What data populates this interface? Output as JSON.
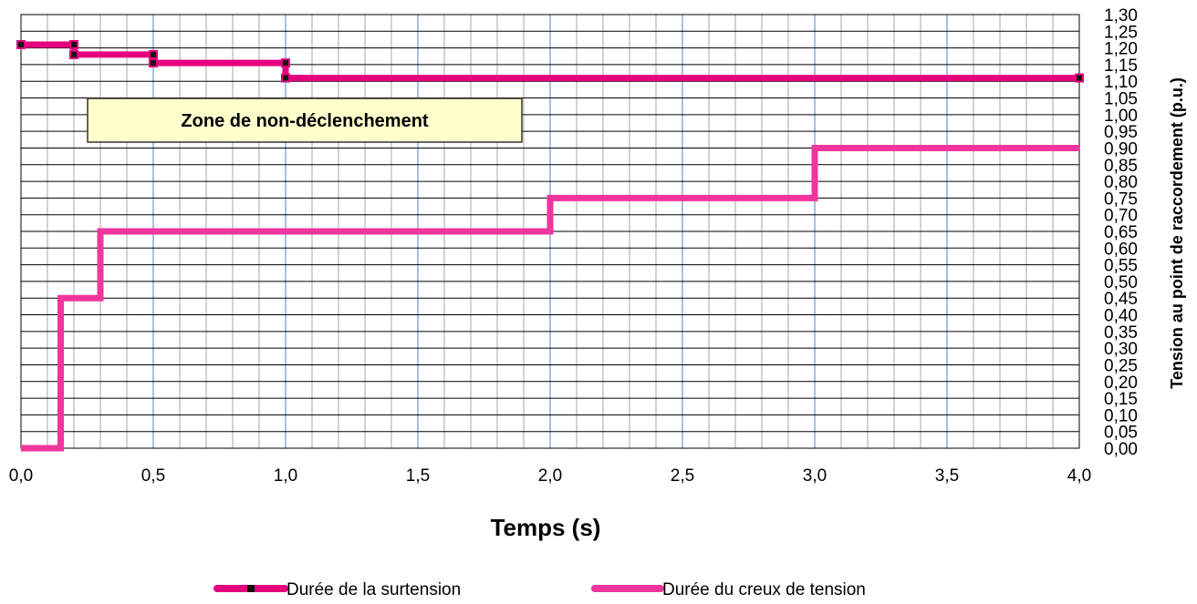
{
  "chart_data": {
    "type": "line",
    "title": "",
    "xlabel": "Temps (s)",
    "ylabel": "Tension au point de raccordement  (p.u.)",
    "xlim": [
      0,
      4
    ],
    "ylim": [
      0,
      1.3
    ],
    "x_ticks": [
      "0,0",
      "0,5",
      "1,0",
      "1,5",
      "2,0",
      "2,5",
      "3,0",
      "3,5",
      "4,0"
    ],
    "y_ticks": [
      "0,00",
      "0,05",
      "0,10",
      "0,15",
      "0,20",
      "0,25",
      "0,30",
      "0,35",
      "0,40",
      "0,45",
      "0,50",
      "0,55",
      "0,60",
      "0,65",
      "0,70",
      "0,75",
      "0,80",
      "0,85",
      "0,90",
      "0,95",
      "1,00",
      "1,05",
      "1,10",
      "1,15",
      "1,20",
      "1,25",
      "1,30"
    ],
    "grid": true,
    "y_axis_side": "right",
    "legend_position": "bottom",
    "annotation": "Zone de non-déclenchement",
    "series": [
      {
        "name": "Durée de la surtension",
        "color": "#E6007E",
        "markers": true,
        "x": [
          0,
          0.2,
          0.2,
          0.5,
          0.5,
          1.0,
          1.0,
          4.0
        ],
        "y": [
          1.21,
          1.21,
          1.18,
          1.18,
          1.155,
          1.155,
          1.11,
          1.11
        ]
      },
      {
        "name": "Durée du creux de tension",
        "color": "#F0359E",
        "markers": false,
        "x": [
          0,
          0.15,
          0.15,
          0.3,
          0.3,
          2.0,
          2.0,
          3.0,
          3.0,
          4.0
        ],
        "y": [
          0,
          0,
          0.45,
          0.45,
          0.65,
          0.65,
          0.75,
          0.75,
          0.9,
          0.9
        ]
      }
    ]
  }
}
